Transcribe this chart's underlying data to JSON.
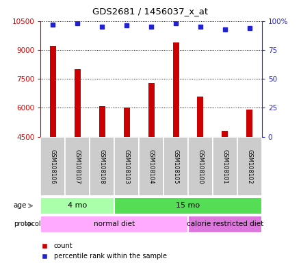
{
  "title": "GDS2681 / 1456037_x_at",
  "samples": [
    "GSM108106",
    "GSM108107",
    "GSM108108",
    "GSM108103",
    "GSM108104",
    "GSM108105",
    "GSM108100",
    "GSM108101",
    "GSM108102"
  ],
  "counts": [
    9200,
    8000,
    6100,
    6000,
    7300,
    9400,
    6600,
    4800,
    5900
  ],
  "percentile_ranks": [
    97,
    98,
    95,
    96,
    95,
    98,
    95,
    93,
    94
  ],
  "ylim_left": [
    4500,
    10500
  ],
  "ylim_right": [
    0,
    100
  ],
  "yticks_left": [
    4500,
    6000,
    7500,
    9000,
    10500
  ],
  "yticks_right": [
    0,
    25,
    50,
    75,
    100
  ],
  "bar_color": "#cc0000",
  "dot_color": "#2222cc",
  "age_labels": [
    {
      "label": "4 mo",
      "start": 0,
      "end": 3
    },
    {
      "label": "15 mo",
      "start": 3,
      "end": 9
    }
  ],
  "age_colors": [
    "#aaffaa",
    "#55dd55"
  ],
  "protocol_labels": [
    {
      "label": "normal diet",
      "start": 0,
      "end": 6
    },
    {
      "label": "calorie restricted diet",
      "start": 6,
      "end": 9
    }
  ],
  "protocol_colors": [
    "#ffaaff",
    "#dd77dd"
  ],
  "left_axis_color": "#cc0000",
  "right_axis_color": "#2222cc",
  "grid_color": "#000000",
  "sample_box_color": "#cccccc",
  "bar_width": 0.25
}
